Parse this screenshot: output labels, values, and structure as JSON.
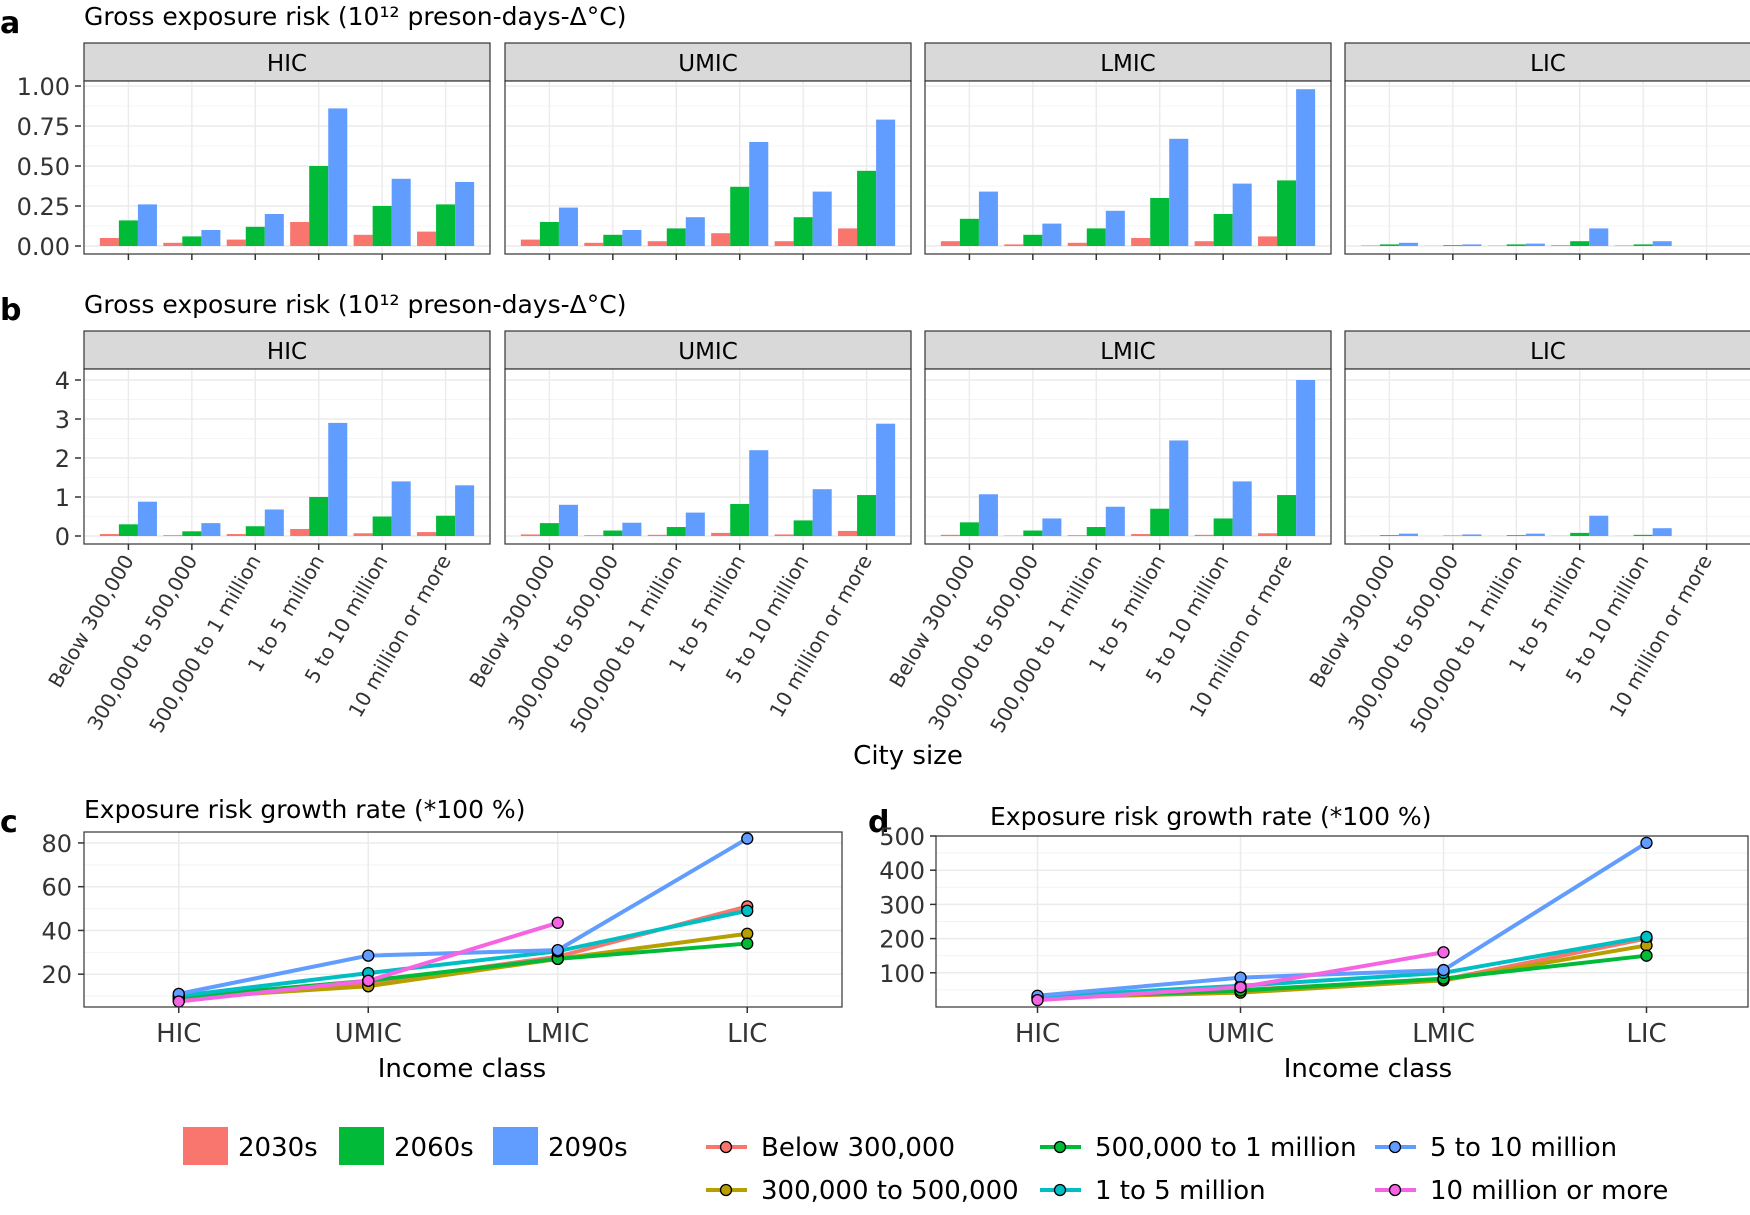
{
  "colors": {
    "p2030": "#F8766D",
    "p2060": "#00BA38",
    "p2090": "#619CFF",
    "strip": "#D9D9D9",
    "grid": "#EBEBEB",
    "panel_border": "#333333"
  },
  "chart_data": [
    {
      "id": "a",
      "panel_letter": "a",
      "type": "bar",
      "title": "Gross exposure risk (10¹² preson-days-Δ°C)",
      "facets": [
        "HIC",
        "UMIC",
        "LMIC",
        "LIC"
      ],
      "categories": [
        "Below 300,000",
        "300,000 to 500,000",
        "500,000 to 1 million",
        "1 to 5 million",
        "5 to 10 million",
        "10 million or more"
      ],
      "ylim": [
        0,
        1.0
      ],
      "yticks": [
        0,
        0.25,
        0.5,
        0.75,
        1.0
      ],
      "ytick_labels": [
        "0.00",
        "0.25",
        "0.50",
        "0.75",
        "1.00"
      ],
      "series": [
        {
          "name": "2030s",
          "values": [
            [
              0.05,
              0.02,
              0.04,
              0.15,
              0.07,
              0.09
            ],
            [
              0.04,
              0.02,
              0.03,
              0.08,
              0.03,
              0.11
            ],
            [
              0.03,
              0.01,
              0.02,
              0.05,
              0.03,
              0.06
            ],
            [
              0.003,
              0.001,
              0.002,
              0.005,
              0.003,
              0.0
            ]
          ]
        },
        {
          "name": "2060s",
          "values": [
            [
              0.16,
              0.06,
              0.12,
              0.5,
              0.25,
              0.26
            ],
            [
              0.15,
              0.07,
              0.11,
              0.37,
              0.18,
              0.47
            ],
            [
              0.17,
              0.07,
              0.11,
              0.3,
              0.2,
              0.41
            ],
            [
              0.01,
              0.005,
              0.01,
              0.03,
              0.01,
              0.0
            ]
          ]
        },
        {
          "name": "2090s",
          "values": [
            [
              0.26,
              0.1,
              0.2,
              0.86,
              0.42,
              0.4
            ],
            [
              0.24,
              0.1,
              0.18,
              0.65,
              0.34,
              0.79
            ],
            [
              0.34,
              0.14,
              0.22,
              0.67,
              0.39,
              0.98
            ],
            [
              0.02,
              0.01,
              0.015,
              0.11,
              0.03,
              0.0
            ]
          ]
        }
      ]
    },
    {
      "id": "b",
      "panel_letter": "b",
      "type": "bar",
      "title": "Gross exposure risk (10¹² preson-days-Δ°C)",
      "facets": [
        "HIC",
        "UMIC",
        "LMIC",
        "LIC"
      ],
      "categories": [
        "Below 300,000",
        "300,000 to 500,000",
        "500,000 to 1 million",
        "1 to 5 million",
        "5 to 10 million",
        "10 million or more"
      ],
      "xlabel": "City size",
      "ylim": [
        0,
        4
      ],
      "yticks": [
        0,
        1,
        2,
        3,
        4
      ],
      "ytick_labels": [
        "0",
        "1",
        "2",
        "3",
        "4"
      ],
      "series": [
        {
          "name": "2030s",
          "values": [
            [
              0.05,
              0.02,
              0.05,
              0.18,
              0.07,
              0.1
            ],
            [
              0.04,
              0.02,
              0.03,
              0.08,
              0.04,
              0.13
            ],
            [
              0.03,
              0.01,
              0.02,
              0.05,
              0.03,
              0.07
            ],
            [
              0.003,
              0.001,
              0.002,
              0.005,
              0.003,
              0.0
            ]
          ]
        },
        {
          "name": "2060s",
          "values": [
            [
              0.3,
              0.12,
              0.25,
              1.0,
              0.5,
              0.52
            ],
            [
              0.33,
              0.14,
              0.23,
              0.82,
              0.4,
              1.05
            ],
            [
              0.35,
              0.14,
              0.23,
              0.7,
              0.45,
              1.05
            ],
            [
              0.02,
              0.01,
              0.02,
              0.08,
              0.03,
              0.0
            ]
          ]
        },
        {
          "name": "2090s",
          "values": [
            [
              0.88,
              0.33,
              0.68,
              2.9,
              1.4,
              1.3
            ],
            [
              0.8,
              0.34,
              0.6,
              2.2,
              1.2,
              2.88
            ],
            [
              1.07,
              0.45,
              0.75,
              2.45,
              1.4,
              4.0
            ],
            [
              0.06,
              0.04,
              0.06,
              0.52,
              0.2,
              0.0
            ]
          ]
        }
      ]
    },
    {
      "id": "c",
      "panel_letter": "c",
      "type": "line",
      "title": "Exposure risk growth rate (*100 %)",
      "categories": [
        "HIC",
        "UMIC",
        "LMIC",
        "LIC"
      ],
      "xlabel": "Income class",
      "ylim": [
        5,
        85
      ],
      "yticks": [
        20,
        40,
        60,
        80
      ],
      "ytick_labels": [
        "20",
        "40",
        "60",
        "80"
      ],
      "series": [
        {
          "name": "Below 300,000",
          "color": "#F8766D",
          "values": [
            8,
            16,
            28,
            51
          ]
        },
        {
          "name": "300,000 to 500,000",
          "color": "#B79F00",
          "values": [
            9,
            14.5,
            27,
            38.5
          ]
        },
        {
          "name": "500,000 to 1 million",
          "color": "#00BA38",
          "values": [
            9.5,
            17,
            27,
            34
          ]
        },
        {
          "name": "1 to 5 million",
          "color": "#00BFC4",
          "values": [
            10,
            20.5,
            30.5,
            49
          ]
        },
        {
          "name": "5 to 10 million",
          "color": "#619CFF",
          "values": [
            11,
            28.5,
            31,
            82
          ]
        },
        {
          "name": "10 million or more",
          "color": "#F564E3",
          "values": [
            7.5,
            17,
            43.5,
            null
          ]
        }
      ]
    },
    {
      "id": "d",
      "panel_letter": "d",
      "type": "line",
      "title": "Exposure risk growth rate (*100 %)",
      "categories": [
        "HIC",
        "UMIC",
        "LMIC",
        "LIC"
      ],
      "xlabel": "Income class",
      "ylim": [
        0,
        500
      ],
      "yticks": [
        100,
        200,
        300,
        400,
        500
      ],
      "ytick_labels": [
        "100",
        "200",
        "300",
        "400",
        "500"
      ],
      "series": [
        {
          "name": "Below 300,000",
          "color": "#F8766D",
          "values": [
            25,
            50,
            80,
            200
          ]
        },
        {
          "name": "300,000 to 500,000",
          "color": "#B79F00",
          "values": [
            27,
            42,
            78,
            180
          ]
        },
        {
          "name": "500,000 to 1 million",
          "color": "#00BA38",
          "values": [
            28,
            48,
            83,
            150
          ]
        },
        {
          "name": "1 to 5 million",
          "color": "#00BFC4",
          "values": [
            30,
            62,
            100,
            205
          ]
        },
        {
          "name": "5 to 10 million",
          "color": "#619CFF",
          "values": [
            33,
            86,
            108,
            480
          ]
        },
        {
          "name": "10 million or more",
          "color": "#F564E3",
          "values": [
            20,
            58,
            160,
            null
          ]
        }
      ]
    }
  ],
  "legend": {
    "periods": [
      {
        "label": "2030s",
        "color": "#F8766D"
      },
      {
        "label": "2060s",
        "color": "#00BA38"
      },
      {
        "label": "2090s",
        "color": "#619CFF"
      }
    ],
    "sizes": [
      {
        "label": "Below 300,000",
        "color": "#F8766D"
      },
      {
        "label": "300,000 to 500,000",
        "color": "#B79F00"
      },
      {
        "label": "500,000 to 1 million",
        "color": "#00BA38"
      },
      {
        "label": "1 to 5 million",
        "color": "#00BFC4"
      },
      {
        "label": "5 to 10 million",
        "color": "#619CFF"
      },
      {
        "label": "10 million or more",
        "color": "#F564E3"
      }
    ]
  }
}
